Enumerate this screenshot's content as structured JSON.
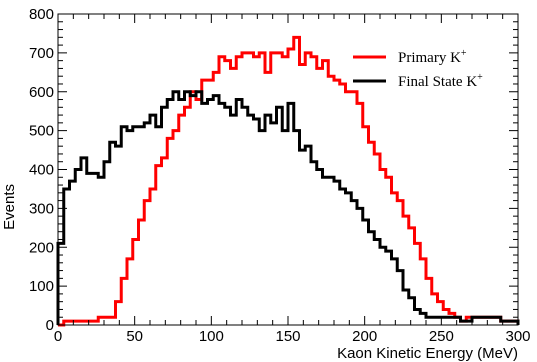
{
  "chart_data": {
    "type": "histogram",
    "title": "",
    "xlabel": "Kaon Kinetic Energy (MeV)",
    "ylabel": "Events",
    "xlim": [
      0,
      300
    ],
    "ylim": [
      0,
      800
    ],
    "xticks": [
      0,
      50,
      100,
      150,
      200,
      250,
      300
    ],
    "yticks": [
      0,
      100,
      200,
      300,
      400,
      500,
      600,
      700,
      800
    ],
    "bin_width": 3.75,
    "grid": false,
    "legend_position": "top-right",
    "series": [
      {
        "name": "Primary K",
        "name_sup": "+",
        "color": "#ff0000",
        "values": [
          0,
          10,
          10,
          10,
          10,
          10,
          10,
          20,
          20,
          20,
          60,
          120,
          170,
          220,
          270,
          320,
          350,
          410,
          430,
          480,
          500,
          540,
          560,
          600,
          580,
          630,
          630,
          650,
          690,
          680,
          660,
          690,
          700,
          700,
          690,
          700,
          650,
          700,
          700,
          690,
          710,
          740,
          670,
          700,
          690,
          660,
          680,
          640,
          630,
          620,
          600,
          600,
          570,
          510,
          470,
          440,
          400,
          380,
          340,
          320,
          280,
          250,
          210,
          170,
          120,
          80,
          60,
          40,
          30,
          20,
          10,
          20,
          20,
          20,
          20,
          20,
          20,
          10,
          10,
          10
        ]
      },
      {
        "name": "Final State K",
        "name_sup": "+",
        "color": "#000000",
        "values": [
          210,
          350,
          370,
          400,
          430,
          390,
          390,
          380,
          420,
          470,
          460,
          510,
          500,
          510,
          510,
          520,
          540,
          510,
          560,
          580,
          600,
          580,
          600,
          590,
          600,
          570,
          580,
          590,
          570,
          560,
          540,
          580,
          560,
          540,
          530,
          500,
          540,
          520,
          560,
          500,
          570,
          500,
          450,
          460,
          420,
          400,
          380,
          380,
          370,
          350,
          340,
          320,
          300,
          270,
          240,
          220,
          200,
          190,
          170,
          140,
          90,
          70,
          40,
          30,
          20,
          20,
          20,
          20,
          20,
          20,
          10,
          10,
          20,
          20,
          20,
          20,
          20,
          10,
          10,
          10
        ]
      }
    ]
  }
}
